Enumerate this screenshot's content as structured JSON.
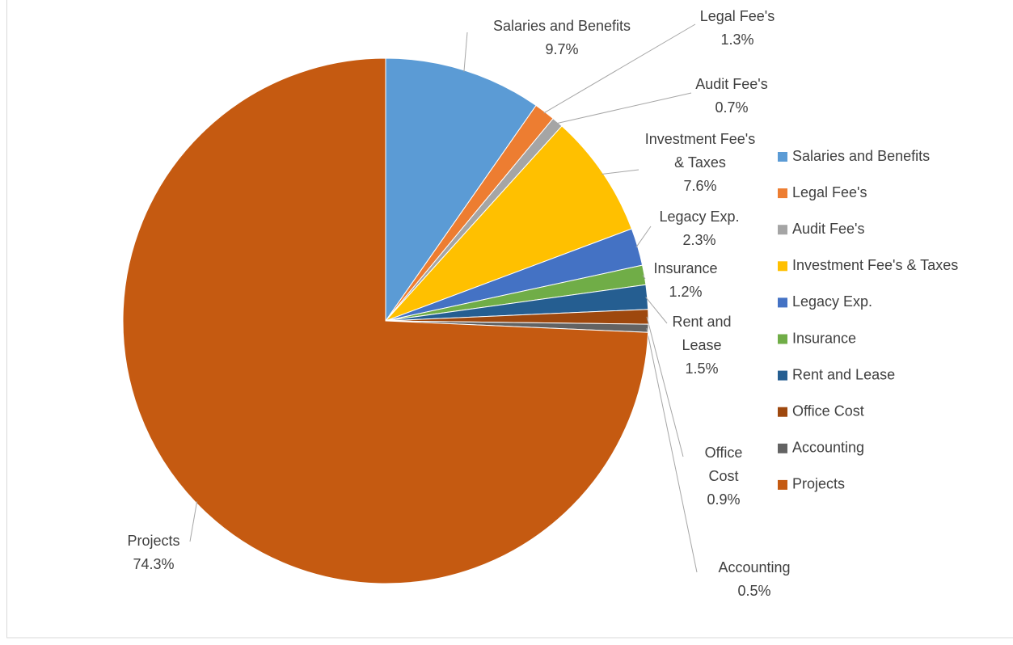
{
  "chart_data": {
    "type": "pie",
    "categories": [
      "Salaries and Benefits",
      "Legal Fee's",
      "Audit Fee's",
      "Investment Fee's & Taxes",
      "Legacy Exp.",
      "Insurance",
      "Rent and Lease",
      "Office Cost",
      "Accounting",
      "Projects"
    ],
    "values": [
      9.7,
      1.3,
      0.7,
      7.6,
      2.3,
      1.2,
      1.5,
      0.9,
      0.5,
      74.3
    ],
    "value_labels": [
      "9.7%",
      "1.3%",
      "0.7%",
      "7.6%",
      "2.3%",
      "1.2%",
      "1.5%",
      "0.9%",
      "0.5%",
      "74.3%"
    ],
    "colors": [
      "#5b9bd5",
      "#ed7d31",
      "#a5a5a5",
      "#ffc000",
      "#4472c4",
      "#70ad47",
      "#255e91",
      "#9e480e",
      "#636363",
      "#c55a11"
    ],
    "legend": "right"
  }
}
